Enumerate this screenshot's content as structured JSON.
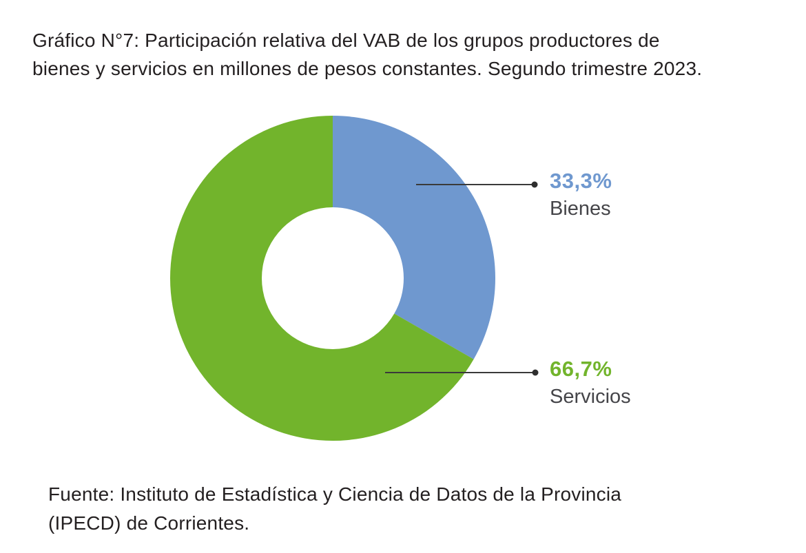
{
  "page": {
    "source": "Fuente: Instituto de Estadística y Ciencia de Datos de la Provincia\n(IPECD) de Corrientes."
  },
  "chart_data": {
    "type": "pie",
    "subtype": "donut",
    "title": "Gráfico N°7: Participación relativa del VAB de los grupos productores de\nbienes y servicios en millones de pesos constantes. Segundo trimestre 2023.",
    "start_angle_deg": 0,
    "direction": "clockwise",
    "legend_position": "right-callouts",
    "slices": [
      {
        "label": "Bienes",
        "value": 33.3,
        "pct_label": "33,3%",
        "color": "#6f98cf"
      },
      {
        "label": "Servicios",
        "value": 66.7,
        "pct_label": "66,7%",
        "color": "#72b42c"
      }
    ],
    "colors": {
      "leader_line": "#3a3a3a",
      "leader_dot": "#2e2e2e",
      "category_text": "#454549",
      "title_text": "#231f20",
      "hole": "#ffffff"
    }
  }
}
